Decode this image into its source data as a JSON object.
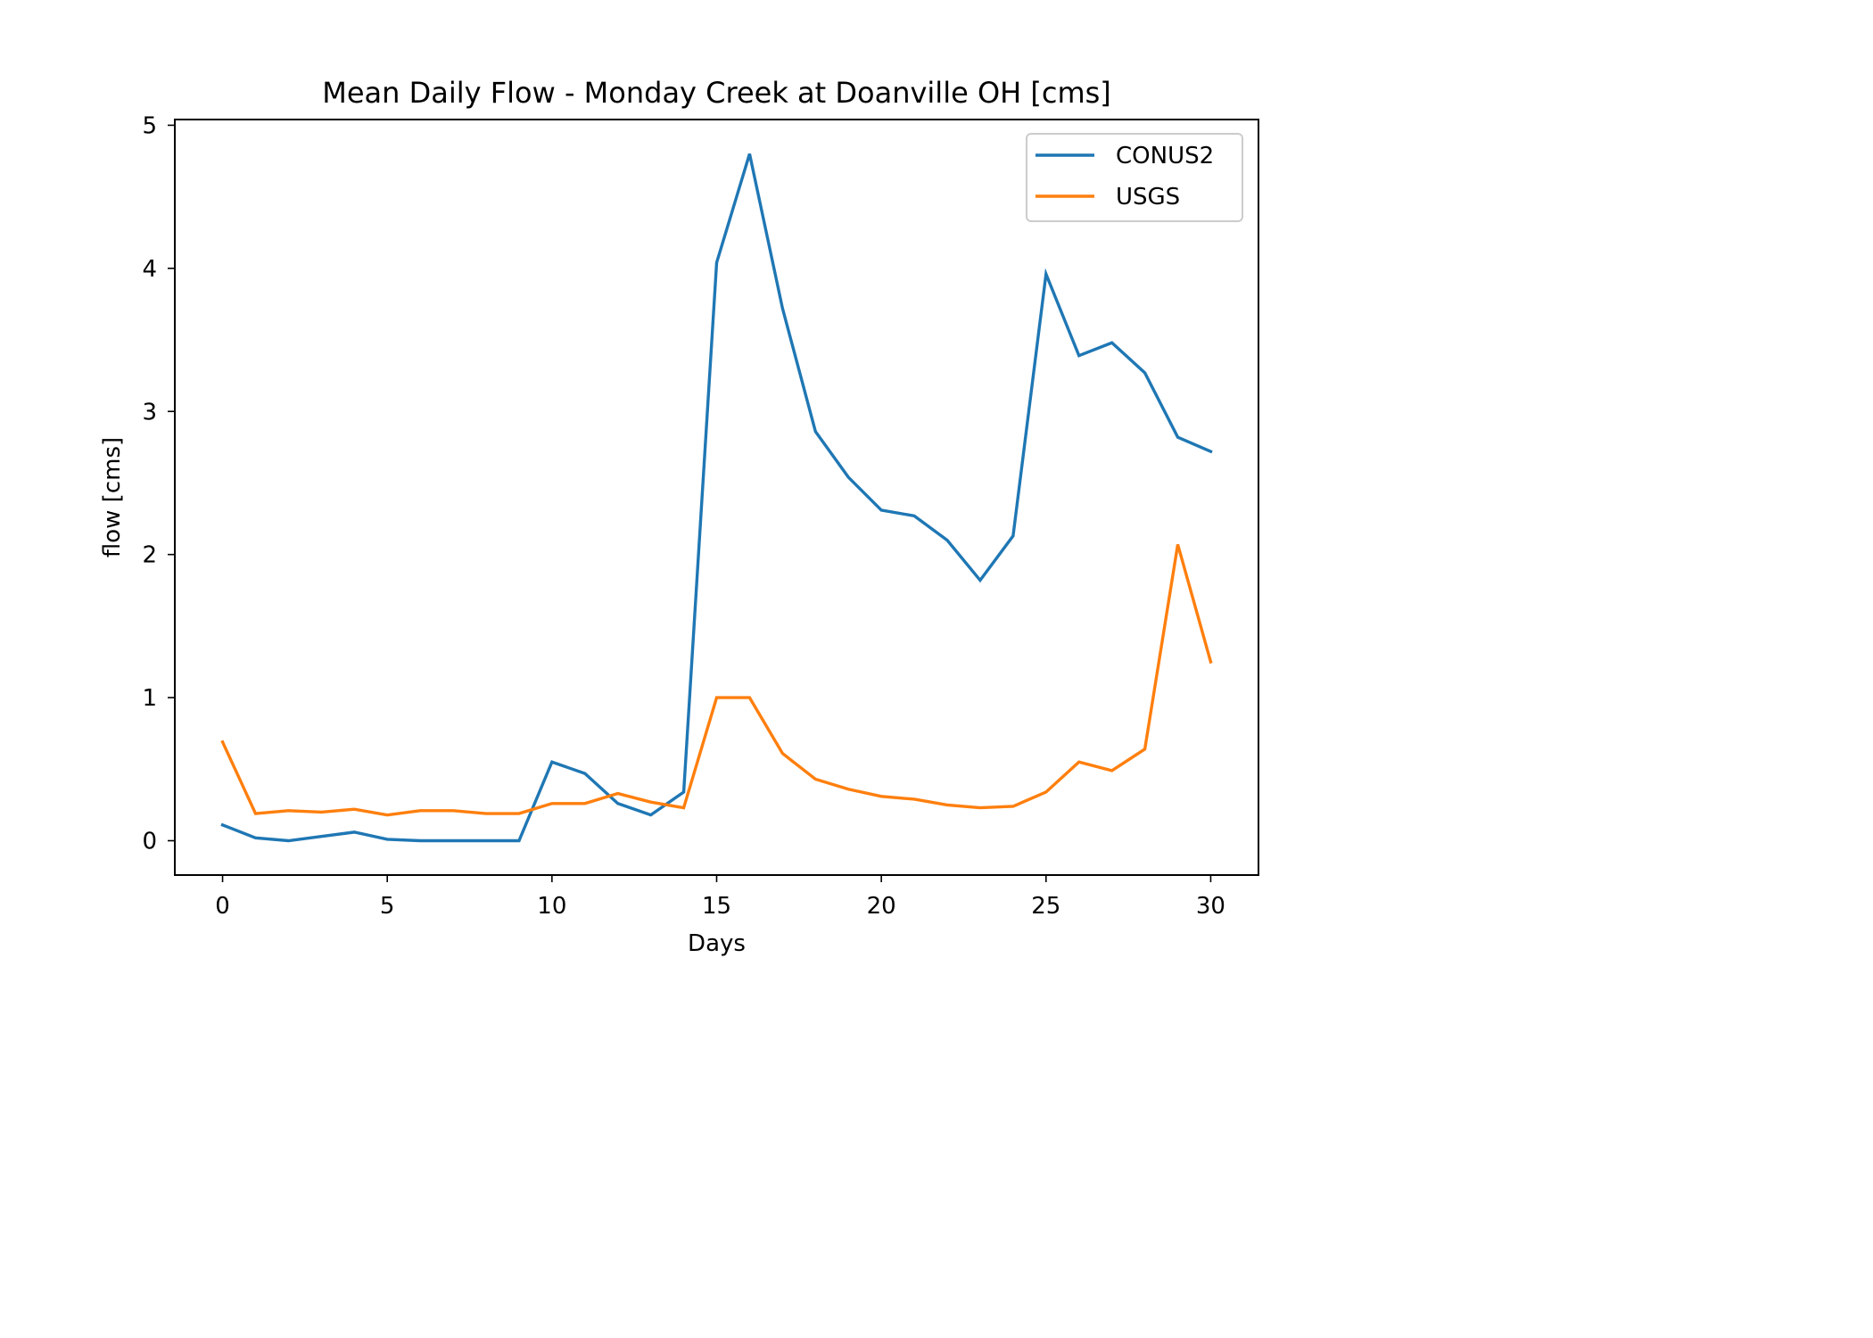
{
  "chart_data": {
    "type": "line",
    "title": "Mean Daily Flow - Monday Creek at Doanville OH [cms]",
    "xlabel": "Days",
    "ylabel": "flow [cms]",
    "xlim": [
      -1.45,
      31.45
    ],
    "ylim": [
      -0.24,
      5.04
    ],
    "xticks": [
      0,
      5,
      10,
      15,
      20,
      25,
      30
    ],
    "yticks": [
      0,
      1,
      2,
      3,
      4,
      5
    ],
    "grid": false,
    "legend_position": "top-right",
    "x": [
      0,
      1,
      2,
      3,
      4,
      5,
      6,
      7,
      8,
      9,
      10,
      11,
      12,
      13,
      14,
      15,
      16,
      17,
      18,
      19,
      20,
      21,
      22,
      23,
      24,
      25,
      26,
      27,
      28,
      29,
      30
    ],
    "series": [
      {
        "name": "CONUS2",
        "color": "#1f77b4",
        "values": [
          0.11,
          0.02,
          0.0,
          0.03,
          0.06,
          0.01,
          0.0,
          0.0,
          0.0,
          0.0,
          0.55,
          0.47,
          0.26,
          0.18,
          0.34,
          4.04,
          4.8,
          3.72,
          2.86,
          2.54,
          2.31,
          2.27,
          2.1,
          1.82,
          2.13,
          3.96,
          3.39,
          3.48,
          3.27,
          2.82,
          2.72
        ]
      },
      {
        "name": "USGS",
        "color": "#ff7f0e",
        "values": [
          0.69,
          0.19,
          0.21,
          0.2,
          0.22,
          0.18,
          0.21,
          0.21,
          0.19,
          0.19,
          0.26,
          0.26,
          0.33,
          0.27,
          0.23,
          1.0,
          1.0,
          0.61,
          0.43,
          0.36,
          0.31,
          0.29,
          0.25,
          0.23,
          0.24,
          0.34,
          0.55,
          0.49,
          0.64,
          2.07,
          1.25
        ]
      }
    ]
  }
}
